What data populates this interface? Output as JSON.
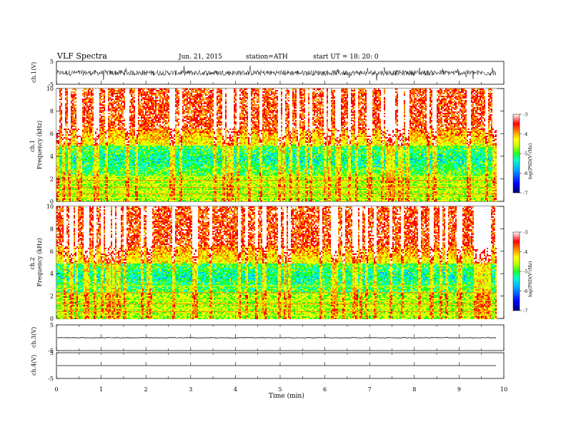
{
  "header": {
    "title": "VLF  Spectra",
    "date": "Jun. 21, 2015",
    "station": "station=ATH",
    "start": "start  UT  =    18: 20: 0"
  },
  "chart_data": {
    "type": "heatmap",
    "xlabel": "Time  (min)",
    "xlim": [
      0,
      10
    ],
    "x_ticks": [
      "0",
      "1",
      "2",
      "3",
      "4",
      "5",
      "6",
      "7",
      "8",
      "9",
      "10"
    ],
    "data_end_min": 9.83,
    "panels": [
      {
        "id": "ch1-wave",
        "kind": "waveform",
        "ylabel": "ch.1(V)",
        "ylim": [
          -5,
          5
        ],
        "y_ticks": [
          "5",
          "-5"
        ],
        "baseline": 0,
        "noise_amplitude": 1.2
      },
      {
        "id": "ch1-spec",
        "kind": "spectrogram",
        "ylabel_top": "ch.1",
        "ylabel": "Frequency  (kHz)",
        "ylim": [
          0,
          10
        ],
        "y_ticks": [
          "0",
          "2",
          "4",
          "6",
          "8",
          "10"
        ],
        "colorbar": {
          "label": "log(PSD(V²/Hz)",
          "range": [
            -7,
            -3
          ],
          "ticks": [
            "-3",
            "-4",
            "-5",
            "-6",
            "-7"
          ]
        },
        "horizontal_lines_khz": [
          2.2,
          1.85,
          1.55,
          1.25,
          0.95,
          0.65,
          0.35
        ]
      },
      {
        "id": "ch2-spec",
        "kind": "spectrogram",
        "ylabel_top": "ch.2",
        "ylabel": "Frequency  (kHz)",
        "ylim": [
          0,
          10
        ],
        "y_ticks": [
          "0",
          "2",
          "4",
          "6",
          "8",
          "10"
        ],
        "colorbar": {
          "label": "log(PSD(V²/Hz)",
          "range": [
            -7,
            -3
          ],
          "ticks": [
            "-3",
            "-4",
            "-5",
            "-6",
            "-7"
          ]
        },
        "horizontal_lines_khz": [
          2.9,
          2.3,
          1.6,
          1.3,
          0.95,
          0.6,
          0.3
        ]
      },
      {
        "id": "ch3-wave",
        "kind": "waveform",
        "ylabel": "ch.3(V)",
        "ylim": [
          -5,
          5
        ],
        "y_ticks": [
          "5",
          "-5"
        ],
        "baseline": 0,
        "noise_amplitude": 0.1
      },
      {
        "id": "ch4-wave",
        "kind": "waveform",
        "ylabel": "ch.4(V)",
        "ylim": [
          -5,
          5
        ],
        "y_ticks": [
          "5",
          "-5"
        ],
        "baseline": 0,
        "noise_amplitude": 0.0
      }
    ],
    "colormap": [
      "#00007a",
      "#0000ff",
      "#00b0ff",
      "#00ffcc",
      "#22ff22",
      "#c8ff00",
      "#ffff00",
      "#ff8c00",
      "#ff0000",
      "#ffffff"
    ]
  }
}
